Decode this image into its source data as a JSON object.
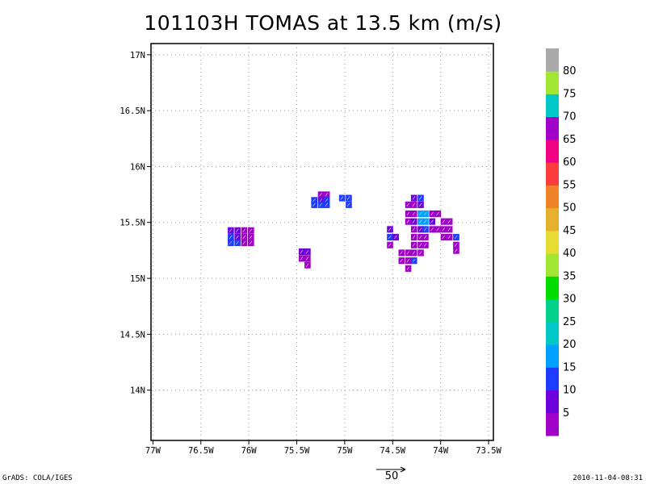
{
  "title": "101103H TOMAS at 13.5 km (m/s)",
  "footer": {
    "left": "GrADS: COLA/IGES",
    "right": "2010-11-04-08:31"
  },
  "vector_legend": {
    "value": "50"
  },
  "chart_data": {
    "type": "heatmap",
    "title": "101103H TOMAS at 13.5 km (m/s)",
    "x_ticks": [
      {
        "value": -77.0,
        "label": "77W"
      },
      {
        "value": -76.5,
        "label": "76.5W"
      },
      {
        "value": -76.0,
        "label": "76W"
      },
      {
        "value": -75.5,
        "label": "75.5W"
      },
      {
        "value": -75.0,
        "label": "75W"
      },
      {
        "value": -74.5,
        "label": "74.5W"
      },
      {
        "value": -74.0,
        "label": "74W"
      },
      {
        "value": -73.5,
        "label": "73.5W"
      }
    ],
    "y_ticks": [
      {
        "value": 14.0,
        "label": "14N"
      },
      {
        "value": 14.5,
        "label": "14.5N"
      },
      {
        "value": 15.0,
        "label": "15N"
      },
      {
        "value": 15.5,
        "label": "15.5N"
      },
      {
        "value": 16.0,
        "label": "16N"
      },
      {
        "value": 16.5,
        "label": "16.5N"
      },
      {
        "value": 17.0,
        "label": "17N"
      }
    ],
    "xlim": [
      -77.02,
      -73.45
    ],
    "ylim": [
      13.55,
      17.1
    ],
    "grid": true,
    "colorbar": {
      "levels": [
        5,
        10,
        15,
        20,
        25,
        30,
        35,
        40,
        45,
        50,
        55,
        60,
        65,
        70,
        75,
        80
      ],
      "colors": [
        "#a000c8",
        "#6e00dc",
        "#1e3cff",
        "#00a0ff",
        "#00c8c8",
        "#00d28c",
        "#00dc00",
        "#a0e632",
        "#e6dc32",
        "#e6af2d",
        "#f08228",
        "#fa3c3c",
        "#f00082",
        "#a000c8",
        "#00c8c8",
        "#a0e632",
        "#aaaaaa"
      ]
    },
    "cells": [
      {
        "lon": -76.19,
        "lat": 15.43,
        "level": 1
      },
      {
        "lon": -76.12,
        "lat": 15.43,
        "level": 1
      },
      {
        "lon": -76.05,
        "lat": 15.43,
        "level": 0
      },
      {
        "lon": -75.98,
        "lat": 15.43,
        "level": 0
      },
      {
        "lon": -76.19,
        "lat": 15.37,
        "level": 2
      },
      {
        "lon": -76.12,
        "lat": 15.37,
        "level": 1
      },
      {
        "lon": -76.05,
        "lat": 15.37,
        "level": 0
      },
      {
        "lon": -75.98,
        "lat": 15.37,
        "level": 0
      },
      {
        "lon": -76.19,
        "lat": 15.32,
        "level": 2
      },
      {
        "lon": -76.12,
        "lat": 15.32,
        "level": 2
      },
      {
        "lon": -76.05,
        "lat": 15.32,
        "level": 0
      },
      {
        "lon": -75.98,
        "lat": 15.32,
        "level": 0
      },
      {
        "lon": -75.45,
        "lat": 15.24,
        "level": 1
      },
      {
        "lon": -75.39,
        "lat": 15.24,
        "level": 1
      },
      {
        "lon": -75.45,
        "lat": 15.18,
        "level": 0
      },
      {
        "lon": -75.39,
        "lat": 15.18,
        "level": 0
      },
      {
        "lon": -75.39,
        "lat": 15.12,
        "level": 0
      },
      {
        "lon": -75.25,
        "lat": 15.75,
        "level": 0
      },
      {
        "lon": -75.19,
        "lat": 15.75,
        "level": 0
      },
      {
        "lon": -75.32,
        "lat": 15.7,
        "level": 2
      },
      {
        "lon": -75.25,
        "lat": 15.7,
        "level": 1
      },
      {
        "lon": -75.19,
        "lat": 15.7,
        "level": 2
      },
      {
        "lon": -75.32,
        "lat": 15.66,
        "level": 2
      },
      {
        "lon": -75.25,
        "lat": 15.66,
        "level": 2
      },
      {
        "lon": -75.19,
        "lat": 15.66,
        "level": 2
      },
      {
        "lon": -75.03,
        "lat": 15.72,
        "level": 2
      },
      {
        "lon": -74.96,
        "lat": 15.72,
        "level": 2
      },
      {
        "lon": -74.96,
        "lat": 15.66,
        "level": 2
      },
      {
        "lon": -74.28,
        "lat": 15.72,
        "level": 1
      },
      {
        "lon": -74.21,
        "lat": 15.72,
        "level": 2
      },
      {
        "lon": -74.34,
        "lat": 15.66,
        "level": 0
      },
      {
        "lon": -74.28,
        "lat": 15.66,
        "level": 0
      },
      {
        "lon": -74.21,
        "lat": 15.66,
        "level": 1
      },
      {
        "lon": -74.34,
        "lat": 15.58,
        "level": 0
      },
      {
        "lon": -74.28,
        "lat": 15.58,
        "level": 0
      },
      {
        "lon": -74.21,
        "lat": 15.58,
        "level": 3
      },
      {
        "lon": -74.16,
        "lat": 15.58,
        "level": 3
      },
      {
        "lon": -74.09,
        "lat": 15.58,
        "level": 0
      },
      {
        "lon": -74.03,
        "lat": 15.58,
        "level": 0
      },
      {
        "lon": -74.34,
        "lat": 15.51,
        "level": 0
      },
      {
        "lon": -74.28,
        "lat": 15.51,
        "level": 1
      },
      {
        "lon": -74.21,
        "lat": 15.51,
        "level": 3
      },
      {
        "lon": -74.16,
        "lat": 15.51,
        "level": 3
      },
      {
        "lon": -74.09,
        "lat": 15.51,
        "level": 1
      },
      {
        "lon": -73.97,
        "lat": 15.51,
        "level": 0
      },
      {
        "lon": -73.91,
        "lat": 15.51,
        "level": 0
      },
      {
        "lon": -74.53,
        "lat": 15.44,
        "level": 1
      },
      {
        "lon": -74.28,
        "lat": 15.44,
        "level": 0
      },
      {
        "lon": -74.21,
        "lat": 15.44,
        "level": 1
      },
      {
        "lon": -74.16,
        "lat": 15.44,
        "level": 2
      },
      {
        "lon": -74.09,
        "lat": 15.44,
        "level": 0
      },
      {
        "lon": -74.03,
        "lat": 15.44,
        "level": 0
      },
      {
        "lon": -73.97,
        "lat": 15.44,
        "level": 0
      },
      {
        "lon": -73.91,
        "lat": 15.44,
        "level": 0
      },
      {
        "lon": -74.53,
        "lat": 15.37,
        "level": 2
      },
      {
        "lon": -74.47,
        "lat": 15.37,
        "level": 1
      },
      {
        "lon": -74.28,
        "lat": 15.37,
        "level": 0
      },
      {
        "lon": -74.21,
        "lat": 15.37,
        "level": 0
      },
      {
        "lon": -74.16,
        "lat": 15.37,
        "level": 0
      },
      {
        "lon": -73.97,
        "lat": 15.37,
        "level": 0
      },
      {
        "lon": -73.91,
        "lat": 15.37,
        "level": 0
      },
      {
        "lon": -73.84,
        "lat": 15.37,
        "level": 2
      },
      {
        "lon": -74.53,
        "lat": 15.3,
        "level": 0
      },
      {
        "lon": -74.28,
        "lat": 15.3,
        "level": 0
      },
      {
        "lon": -74.21,
        "lat": 15.3,
        "level": 0
      },
      {
        "lon": -74.16,
        "lat": 15.3,
        "level": 0
      },
      {
        "lon": -73.84,
        "lat": 15.3,
        "level": 0
      },
      {
        "lon": -74.41,
        "lat": 15.23,
        "level": 0
      },
      {
        "lon": -74.34,
        "lat": 15.23,
        "level": 0
      },
      {
        "lon": -74.28,
        "lat": 15.23,
        "level": 0
      },
      {
        "lon": -74.21,
        "lat": 15.23,
        "level": 0
      },
      {
        "lon": -73.84,
        "lat": 15.25,
        "level": 0
      },
      {
        "lon": -74.41,
        "lat": 15.16,
        "level": 0
      },
      {
        "lon": -74.34,
        "lat": 15.16,
        "level": 0
      },
      {
        "lon": -74.28,
        "lat": 15.16,
        "level": 2
      },
      {
        "lon": -74.34,
        "lat": 15.09,
        "level": 0
      }
    ]
  }
}
